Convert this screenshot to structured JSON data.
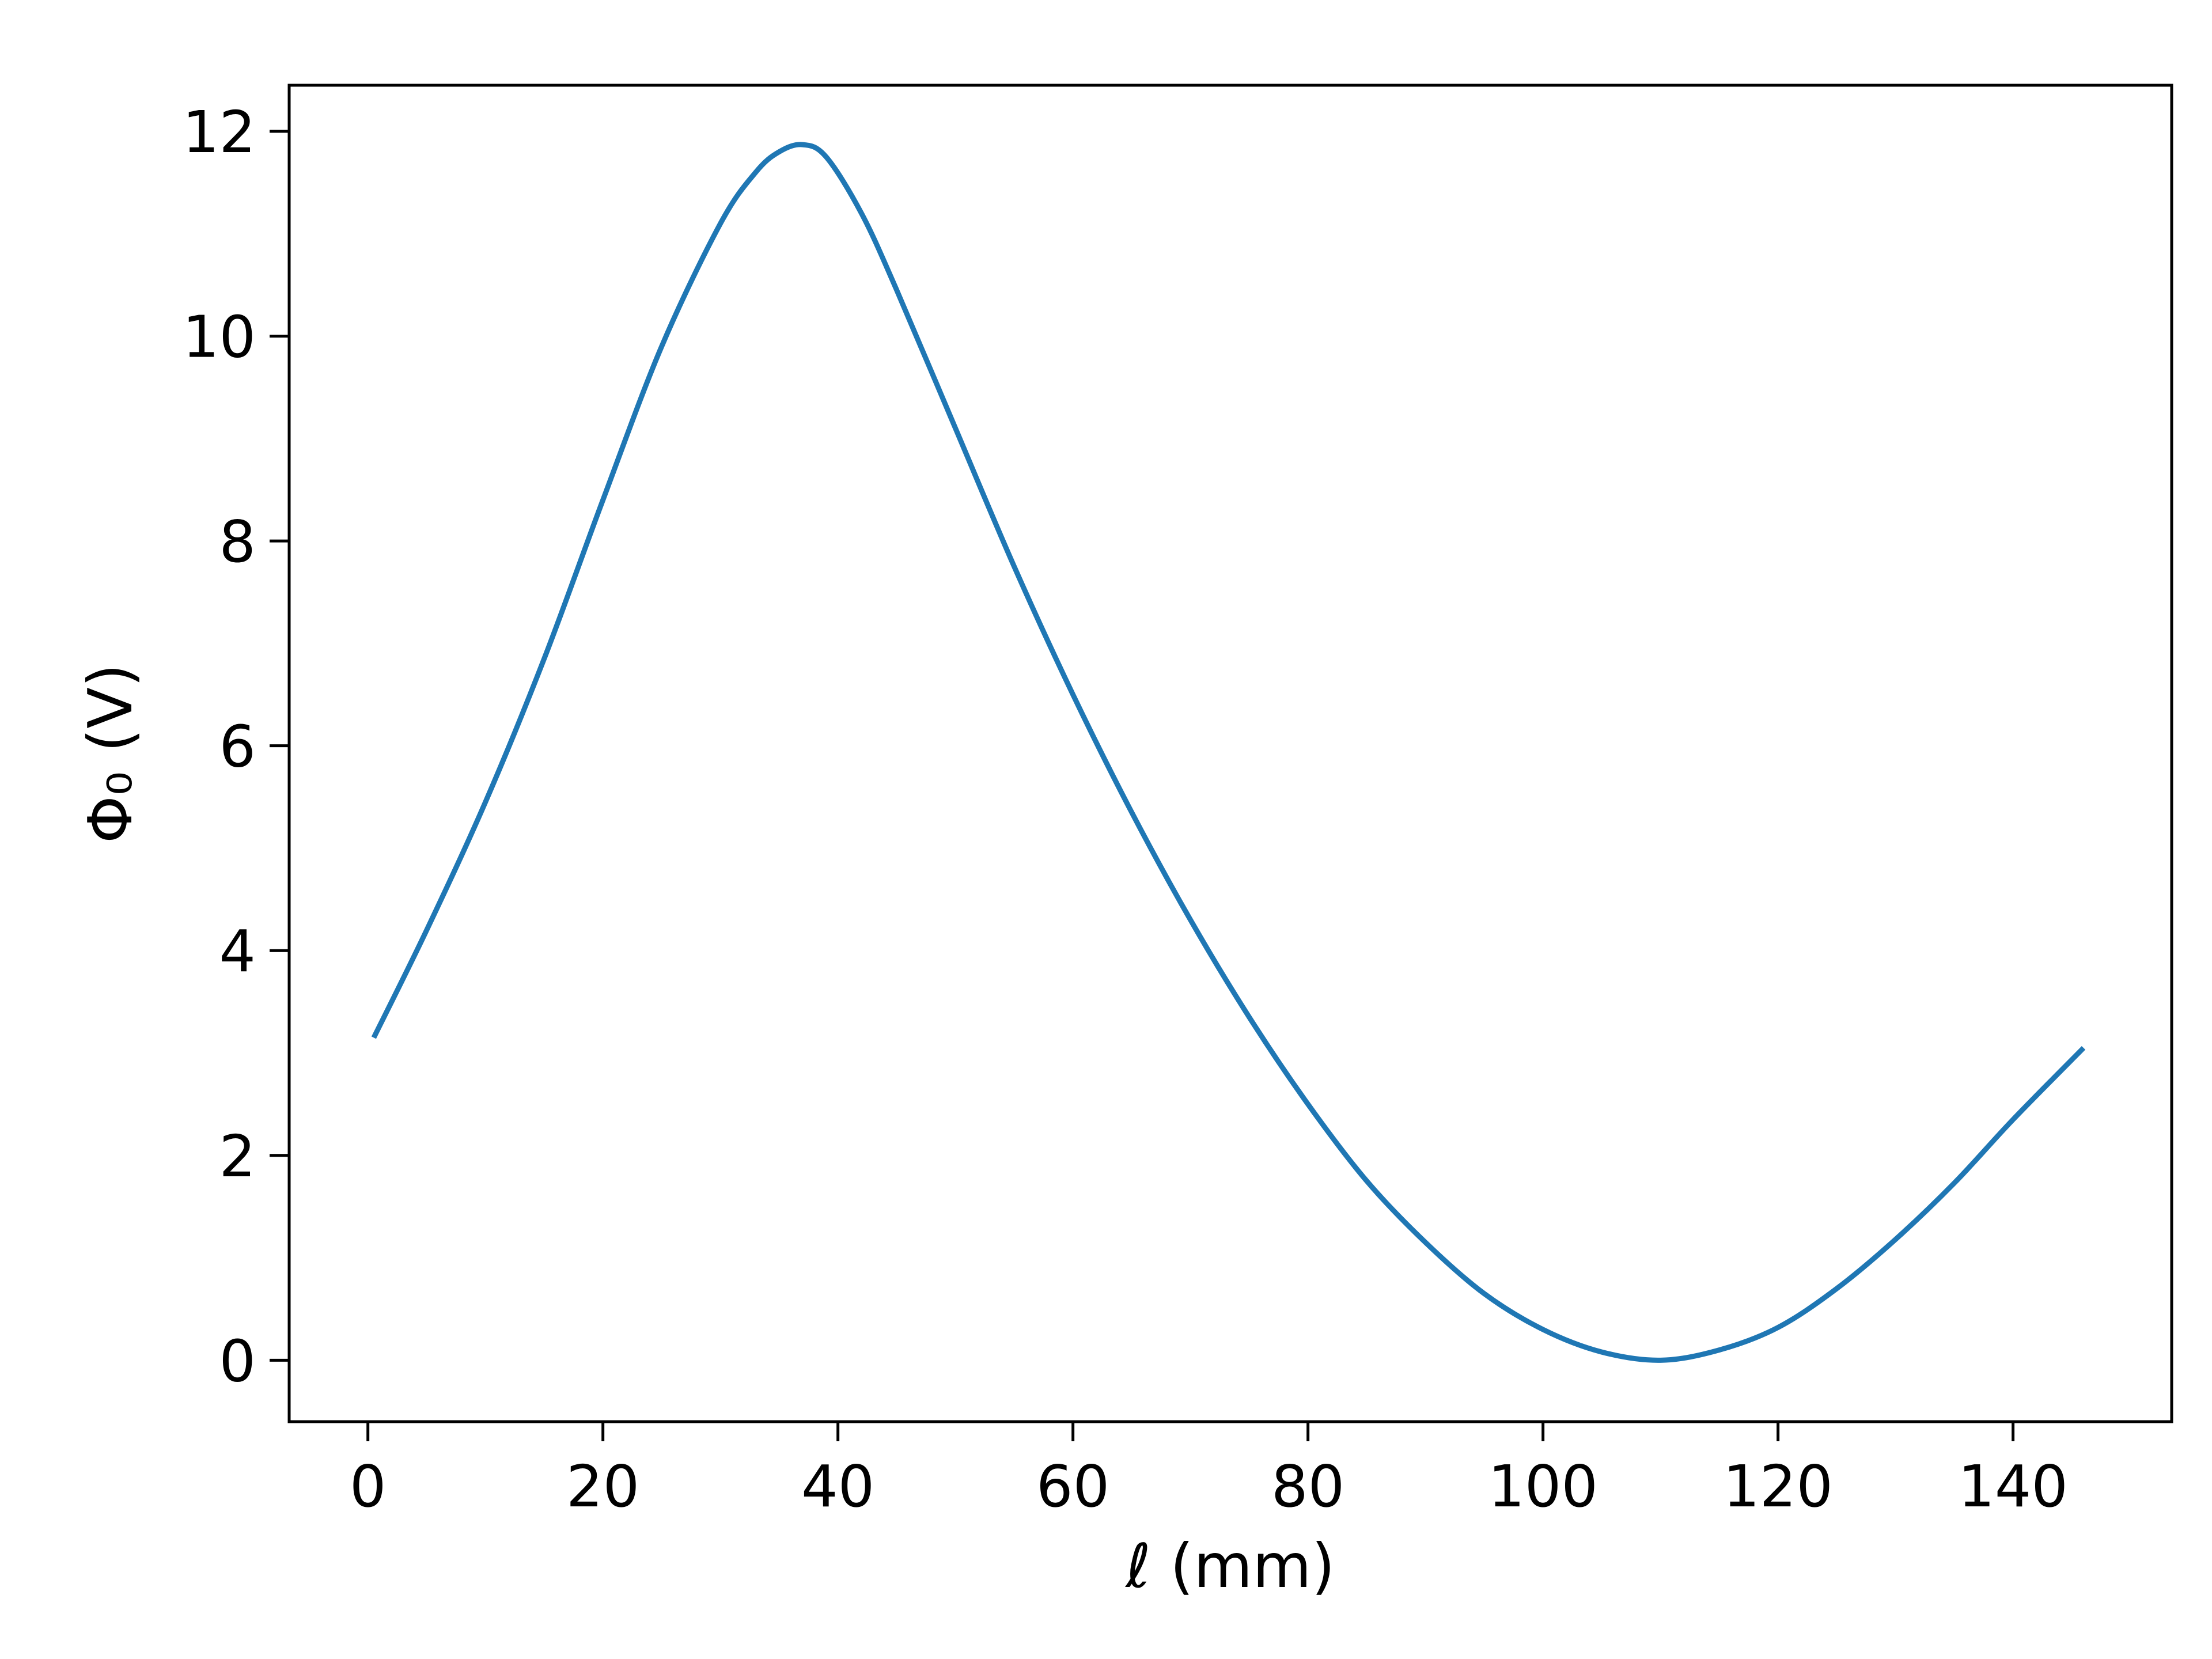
{
  "chart_data": {
    "type": "line",
    "title": "",
    "xlabel": "ℓ (mm)",
    "ylabel": "Φ₀ (V)",
    "xlim": [
      -6.7,
      153.5
    ],
    "ylim": [
      -0.6,
      12.45
    ],
    "xticks": [
      0,
      20,
      40,
      60,
      80,
      100,
      120,
      140
    ],
    "yticks": [
      0,
      2,
      4,
      6,
      8,
      10,
      12
    ],
    "xtick_labels": [
      "0",
      "20",
      "40",
      "60",
      "80",
      "100",
      "120",
      "140"
    ],
    "ytick_labels": [
      "0",
      "2",
      "4",
      "6",
      "8",
      "10",
      "12"
    ],
    "grid": false,
    "series": [
      {
        "color": "#1f77b4",
        "x": [
          0.5,
          5,
          10,
          15,
          20,
          25,
          30,
          33,
          35,
          37,
          39,
          42,
          45,
          50,
          55,
          60,
          65,
          70,
          75,
          80,
          85,
          90,
          95,
          100,
          105,
          110,
          115,
          120,
          125,
          130,
          135,
          140,
          146
        ],
        "y": [
          3.15,
          4.2,
          5.45,
          6.85,
          8.4,
          9.9,
          11.1,
          11.6,
          11.8,
          11.87,
          11.75,
          11.2,
          10.45,
          9.1,
          7.75,
          6.5,
          5.35,
          4.3,
          3.35,
          2.5,
          1.75,
          1.15,
          0.65,
          0.3,
          0.08,
          0.0,
          0.1,
          0.32,
          0.7,
          1.18,
          1.73,
          2.35,
          3.05
        ]
      }
    ]
  }
}
